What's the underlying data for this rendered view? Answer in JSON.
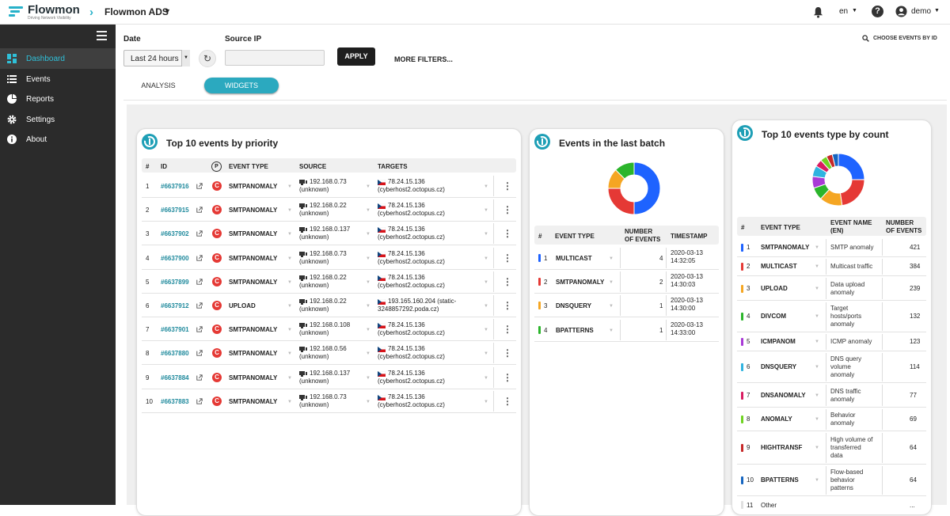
{
  "header": {
    "brand": "Flowmon",
    "tagline": "Driving Network Visibility",
    "app": "Flowmon ADS",
    "lang": "en",
    "user": "demo"
  },
  "sidebar": {
    "items": [
      {
        "label": "Dashboard",
        "icon": "dashboard-icon"
      },
      {
        "label": "Events",
        "icon": "list-icon"
      },
      {
        "label": "Reports",
        "icon": "pie-icon"
      },
      {
        "label": "Settings",
        "icon": "gear-icon"
      },
      {
        "label": "About",
        "icon": "info-icon"
      }
    ]
  },
  "filters": {
    "date_label": "Date",
    "date_value": "Last 24 hours",
    "source_ip_label": "Source IP",
    "source_ip_value": "",
    "apply": "APPLY",
    "more": "MORE FILTERS...",
    "choose": "CHOOSE EVENTS BY ID"
  },
  "tabs": {
    "analysis": "ANALYSIS",
    "widgets": "WIDGETS"
  },
  "priority": {
    "title": "Top 10 events by priority",
    "headers": {
      "num": "#",
      "id": "ID",
      "p": "P",
      "type": "EVENT TYPE",
      "source": "SOURCE",
      "targets": "TARGETS"
    },
    "rows": [
      {
        "n": "1",
        "id": "#6637916",
        "type": "SMTPANOMALY",
        "src1": "192.168.0.73",
        "src2": "(unknown)",
        "t1": "78.24.15.136",
        "t2": "(cyberhost2.octopus.cz)"
      },
      {
        "n": "2",
        "id": "#6637915",
        "type": "SMTPANOMALY",
        "src1": "192.168.0.22",
        "src2": "(unknown)",
        "t1": "78.24.15.136",
        "t2": "(cyberhost2.octopus.cz)"
      },
      {
        "n": "3",
        "id": "#6637902",
        "type": "SMTPANOMALY",
        "src1": "192.168.0.137",
        "src2": "(unknown)",
        "t1": "78.24.15.136",
        "t2": "(cyberhost2.octopus.cz)"
      },
      {
        "n": "4",
        "id": "#6637900",
        "type": "SMTPANOMALY",
        "src1": "192.168.0.73",
        "src2": "(unknown)",
        "t1": "78.24.15.136",
        "t2": "(cyberhost2.octopus.cz)"
      },
      {
        "n": "5",
        "id": "#6637899",
        "type": "SMTPANOMALY",
        "src1": "192.168.0.22",
        "src2": "(unknown)",
        "t1": "78.24.15.136",
        "t2": "(cyberhost2.octopus.cz)"
      },
      {
        "n": "6",
        "id": "#6637912",
        "type": "UPLOAD",
        "src1": "192.168.0.22",
        "src2": "(unknown)",
        "t1": "193.165.160.204 (static-",
        "t2": "3248857292.poda.cz)"
      },
      {
        "n": "7",
        "id": "#6637901",
        "type": "SMTPANOMALY",
        "src1": "192.168.0.108",
        "src2": "(unknown)",
        "t1": "78.24.15.136",
        "t2": "(cyberhost2.octopus.cz)"
      },
      {
        "n": "8",
        "id": "#6637880",
        "type": "SMTPANOMALY",
        "src1": "192.168.0.56",
        "src2": "(unknown)",
        "t1": "78.24.15.136",
        "t2": "(cyberhost2.octopus.cz)"
      },
      {
        "n": "9",
        "id": "#6637884",
        "type": "SMTPANOMALY",
        "src1": "192.168.0.137",
        "src2": "(unknown)",
        "t1": "78.24.15.136",
        "t2": "(cyberhost2.octopus.cz)"
      },
      {
        "n": "10",
        "id": "#6637883",
        "type": "SMTPANOMALY",
        "src1": "192.168.0.73",
        "src2": "(unknown)",
        "t1": "78.24.15.136",
        "t2": "(cyberhost2.octopus.cz)"
      }
    ]
  },
  "batch": {
    "title": "Events in the last batch",
    "headers": {
      "num": "#",
      "type": "EVENT TYPE",
      "n1": "NUMBER",
      "n2": "OF EVENTS",
      "ts": "TIMESTAMP"
    },
    "rows": [
      {
        "n": "1",
        "type": "MULTICAST",
        "count": "4",
        "d": "2020-03-13",
        "t": "14:32:05",
        "color": "#1e63ff"
      },
      {
        "n": "2",
        "type": "SMTPANOMALY",
        "count": "2",
        "d": "2020-03-13",
        "t": "14:30:03",
        "color": "#e53935"
      },
      {
        "n": "3",
        "type": "DNSQUERY",
        "count": "1",
        "d": "2020-03-13",
        "t": "14:30:00",
        "color": "#f5a623"
      },
      {
        "n": "4",
        "type": "BPATTERNS",
        "count": "1",
        "d": "2020-03-13",
        "t": "14:33:00",
        "color": "#2bb52b"
      }
    ],
    "donut": [
      {
        "value": 4,
        "color": "#1e63ff"
      },
      {
        "value": 2,
        "color": "#e53935"
      },
      {
        "value": 1,
        "color": "#f5a623"
      },
      {
        "value": 1,
        "color": "#2bb52b"
      }
    ]
  },
  "types": {
    "title": "Top 10 events type by count",
    "headers": {
      "num": "#",
      "type": "EVENT TYPE",
      "name1": "EVENT NAME",
      "name2": "(EN)",
      "n1": "NUMBER",
      "n2": "OF EVENTS"
    },
    "rows": [
      {
        "n": "1",
        "type": "SMTPANOMALY",
        "name": [
          "SMTP anomaly"
        ],
        "count": "421",
        "color": "#1e63ff"
      },
      {
        "n": "2",
        "type": "MULTICAST",
        "name": [
          "Multicast traffic"
        ],
        "count": "384",
        "color": "#e53935"
      },
      {
        "n": "3",
        "type": "UPLOAD",
        "name": [
          "Data upload",
          "anomaly"
        ],
        "count": "239",
        "color": "#f5a623"
      },
      {
        "n": "4",
        "type": "DIVCOM",
        "name": [
          "Target",
          "hosts/ports",
          "anomaly"
        ],
        "count": "132",
        "color": "#2bb52b"
      },
      {
        "n": "5",
        "type": "ICMPANOM",
        "name": [
          "ICMP anomaly"
        ],
        "count": "123",
        "color": "#a83ad6"
      },
      {
        "n": "6",
        "type": "DNSQUERY",
        "name": [
          "DNS query",
          "volume",
          "anomaly"
        ],
        "count": "114",
        "color": "#2fb3e0"
      },
      {
        "n": "7",
        "type": "DNSANOMALY",
        "name": [
          "DNS traffic",
          "anomaly"
        ],
        "count": "77",
        "color": "#d81b60"
      },
      {
        "n": "8",
        "type": "ANOMALY",
        "name": [
          "Behavior",
          "anomaly"
        ],
        "count": "69",
        "color": "#6fd321"
      },
      {
        "n": "9",
        "type": "HIGHTRANSF",
        "name": [
          "High volume of",
          "transferred",
          "data"
        ],
        "count": "64",
        "color": "#c62828"
      },
      {
        "n": "10",
        "type": "BPATTERNS",
        "name": [
          "Flow-based",
          "behavior",
          "patterns"
        ],
        "count": "64",
        "color": "#1565c0"
      }
    ],
    "partial": {
      "n": "11",
      "label": "Other",
      "count": "..."
    },
    "donut": [
      {
        "value": 421,
        "color": "#1e63ff"
      },
      {
        "value": 384,
        "color": "#e53935"
      },
      {
        "value": 239,
        "color": "#f5a623"
      },
      {
        "value": 132,
        "color": "#2bb52b"
      },
      {
        "value": 123,
        "color": "#a83ad6"
      },
      {
        "value": 114,
        "color": "#2fb3e0"
      },
      {
        "value": 77,
        "color": "#d81b60"
      },
      {
        "value": 69,
        "color": "#6fd321"
      },
      {
        "value": 64,
        "color": "#c62828"
      },
      {
        "value": 64,
        "color": "#1565c0"
      }
    ]
  }
}
